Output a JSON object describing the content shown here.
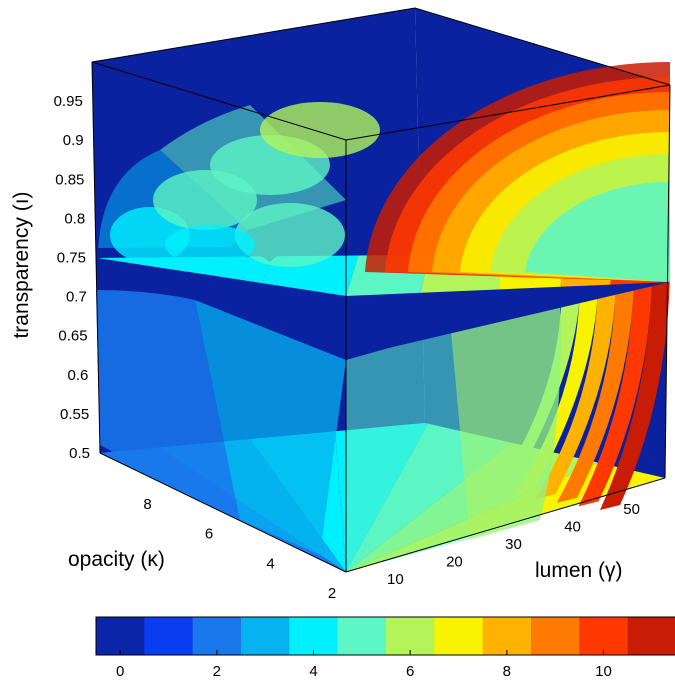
{
  "chart_data": {
    "type": "volumetric slice plot",
    "axes": {
      "x": {
        "label": "lumen (γ)",
        "ticks": [
          "10",
          "20",
          "30",
          "40",
          "50"
        ],
        "range": [
          3,
          57
        ]
      },
      "y": {
        "label": "opacity (κ)",
        "ticks": [
          "2",
          "4",
          "6",
          "8"
        ],
        "range": [
          2,
          10
        ]
      },
      "z": {
        "label": "transparency (ı)",
        "ticks": [
          "0.5",
          "0.55",
          "0.6",
          "0.65",
          "0.7",
          "0.75",
          "0.8",
          "0.85",
          "0.9",
          "0.95"
        ],
        "range": [
          0.5,
          1.0
        ]
      }
    },
    "slices": [
      {
        "plane": "z",
        "value": 0.5
      },
      {
        "plane": "z",
        "value": 0.75
      },
      {
        "plane": "x",
        "value": 57
      },
      {
        "plane": "y",
        "value": 10
      }
    ],
    "colorbar": {
      "ticks": [
        "0",
        "2",
        "4",
        "6",
        "8",
        "10"
      ],
      "range": [
        -0.5,
        11.5
      ],
      "colors": [
        "#0a25a8",
        "#0a3cf0",
        "#1a78ec",
        "#06b2f0",
        "#00f0ff",
        "#5cf5c4",
        "#b2f45a",
        "#f8f400",
        "#ffb200",
        "#ff7a00",
        "#ff3800",
        "#c81c04"
      ]
    },
    "background_color": "#0a21a0"
  }
}
